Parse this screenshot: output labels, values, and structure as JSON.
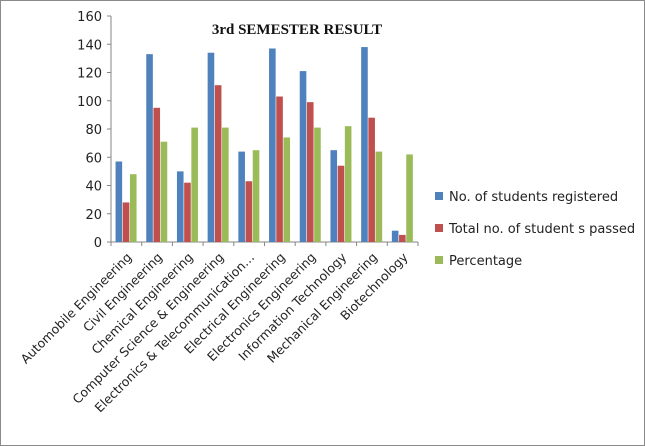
{
  "chart_data": {
    "type": "bar",
    "title": "3rd SEMESTER RESULT",
    "xlabel": "",
    "ylabel": "",
    "ylim": [
      0,
      160
    ],
    "yticks": [
      0,
      20,
      40,
      60,
      80,
      100,
      120,
      140,
      160
    ],
    "grid": false,
    "legend_position": "right",
    "categories": [
      "Automobile Engineering",
      "Civil Engineering",
      "Chemical Engineering",
      "Computer Science & Engineering",
      "Electronics & Telecommunication…",
      "Electrical Engineering",
      "Electronics Engineering",
      "Information Technology",
      "Mechanical Engineering",
      "Biotechnology"
    ],
    "series": [
      {
        "name": "No. of students registered",
        "color": "#4f81bd",
        "values": [
          57,
          133,
          50,
          134,
          64,
          137,
          121,
          65,
          138,
          8
        ]
      },
      {
        "name": "Total no. of student s passed",
        "color": "#c0504d",
        "values": [
          28,
          95,
          42,
          111,
          43,
          103,
          99,
          54,
          88,
          5
        ]
      },
      {
        "name": "Percentage",
        "color": "#9bbb59",
        "values": [
          48,
          71,
          81,
          81,
          65,
          74,
          81,
          82,
          64,
          62
        ]
      }
    ]
  }
}
